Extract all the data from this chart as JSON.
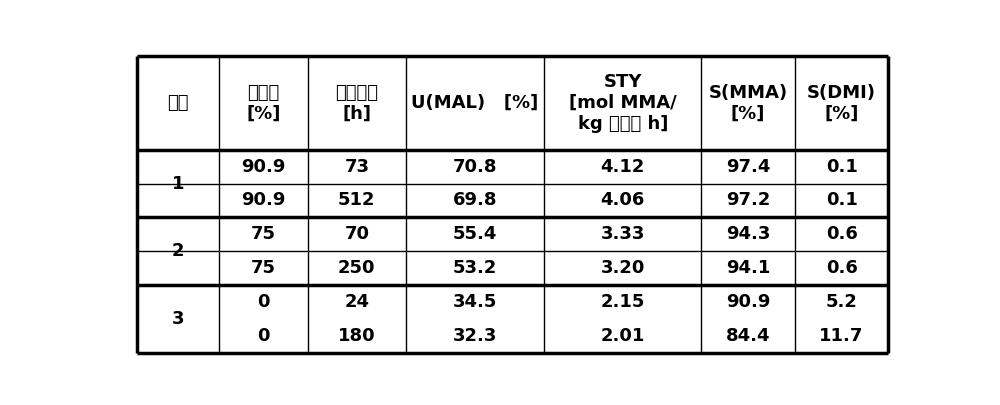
{
  "col_headers_line1": [
    "编号",
    "返回率",
    "运行时间",
    "U(MAL)   [%]",
    "STY",
    "S(MMA)",
    "S(DMI)"
  ],
  "col_headers_line2": [
    "",
    "[%]",
    "[h]",
    "",
    "[mol MMA/",
    "[%]",
    "[%]"
  ],
  "col_headers_line3": [
    "",
    "",
    "",
    "",
    "kg 催化剂 h]",
    "",
    ""
  ],
  "groups": [
    {
      "label": "1",
      "rows": [
        [
          "90.9",
          "73",
          "70.8",
          "4.12",
          "97.4",
          "0.1"
        ],
        [
          "90.9",
          "512",
          "69.8",
          "4.06",
          "97.2",
          "0.1"
        ]
      ]
    },
    {
      "label": "2",
      "rows": [
        [
          "75",
          "70",
          "55.4",
          "3.33",
          "94.3",
          "0.6"
        ],
        [
          "75",
          "250",
          "53.2",
          "3.20",
          "94.1",
          "0.6"
        ]
      ]
    },
    {
      "label": "3",
      "rows": [
        [
          "0",
          "24",
          "34.5",
          "2.15",
          "90.9",
          "5.2"
        ],
        [
          "0",
          "180",
          "32.3",
          "2.01",
          "84.4",
          "11.7"
        ]
      ]
    }
  ],
  "col_widths_rel": [
    0.88,
    0.95,
    1.05,
    1.48,
    1.68,
    1.0,
    1.0
  ],
  "background_color": "#ffffff",
  "border_color": "#000000",
  "thick_lw": 2.5,
  "thin_lw": 1.0,
  "header_fontsize": 13,
  "data_fontsize": 13
}
